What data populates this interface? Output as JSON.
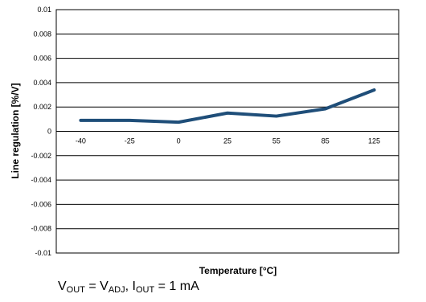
{
  "chart_data": {
    "type": "line",
    "xlabel": "Temperature [°C]",
    "ylabel": "Line regulation [%/V]",
    "categories": [
      "-40",
      "-25",
      "0",
      "25",
      "55",
      "85",
      "125"
    ],
    "series": [
      {
        "values": [
          0.0009,
          0.0009,
          0.00075,
          0.0015,
          0.00125,
          0.00185,
          0.0034
        ]
      }
    ],
    "ylim": [
      -0.01,
      0.01
    ],
    "yticks": [
      "0.01",
      "0.008",
      "0.006",
      "0.004",
      "0.002",
      "0",
      "-0.002",
      "-0.004",
      "-0.006",
      "-0.008",
      "-0.01"
    ],
    "grid": true,
    "line_color": "#1f4e79"
  },
  "caption": {
    "v": "V",
    "out_sub": "OUT",
    "eq1": " = V",
    "adj_sub": "ADJ",
    "comma_i": ", I",
    "out_sub2": "OUT",
    "eq2": " = 1 mA"
  }
}
